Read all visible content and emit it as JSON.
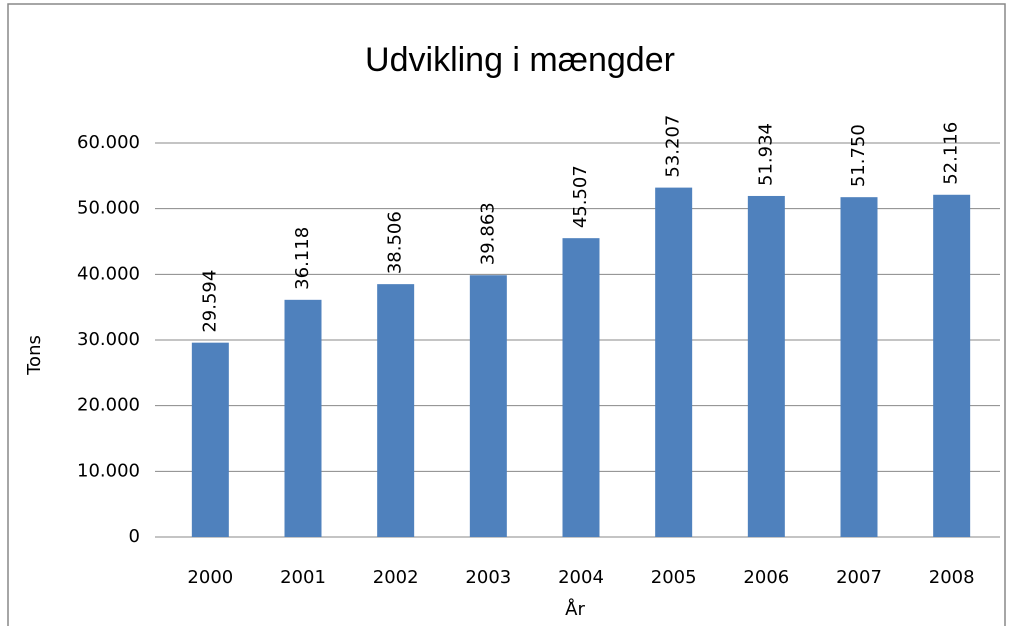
{
  "chart_data": {
    "type": "bar",
    "title": "Udvikling i mængder",
    "x_label": "År",
    "y_label": "Tons",
    "categories": [
      "2000",
      "2001",
      "2002",
      "2003",
      "2004",
      "2005",
      "2006",
      "2007",
      "2008"
    ],
    "values": [
      29594,
      36118,
      38506,
      39863,
      45507,
      53207,
      51934,
      51750,
      52116
    ],
    "value_labels": [
      "29.594",
      "36.118",
      "38.506",
      "39.863",
      "45.507",
      "53.207",
      "51.934",
      "51.750",
      "52.116"
    ],
    "color": "#4f81bd",
    "ylim": [
      0,
      60000
    ],
    "yticks": [
      0,
      {
        "value": 10000,
        "label": "10.000"
      },
      {
        "value": 20000,
        "label": "20.000"
      },
      {
        "value": 30000,
        "label": "30.000"
      },
      {
        "value": 40000,
        "label": "40.000"
      },
      {
        "value": 50000,
        "label": "50.000"
      },
      {
        "value": 60000,
        "label": "60.000"
      }
    ],
    "grid": true
  }
}
